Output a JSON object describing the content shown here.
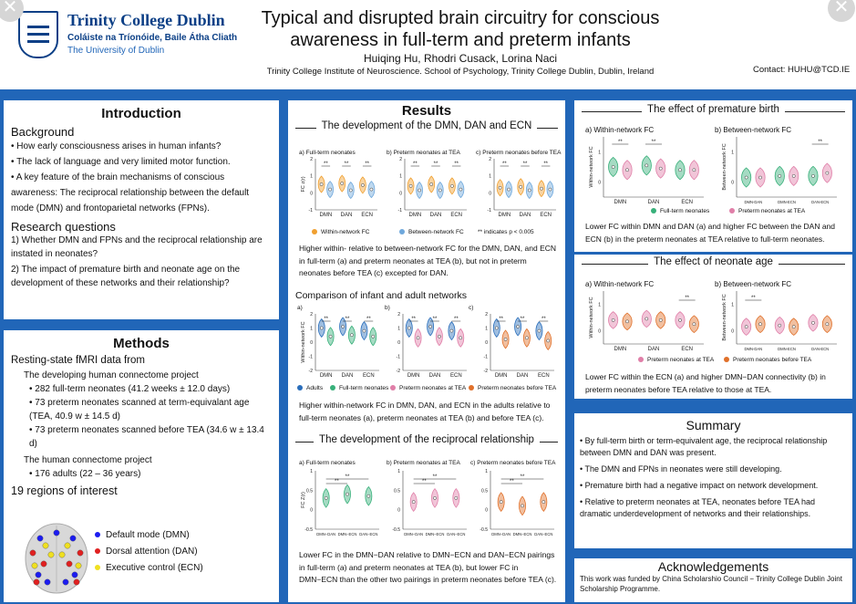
{
  "header": {
    "logo_name": "Trinity College Dublin",
    "logo_irish": "Coláiste na Tríonóide, Baile Átha Cliath",
    "logo_sub": "The University of Dublin",
    "title": "Typical and disrupted brain circuitry for conscious awareness in full-term and preterm infants",
    "authors": "Huiqing Hu, Rhodri Cusack, Lorina Naci",
    "affiliation": "Trinity College Institute of Neuroscience. School of Psychology, Trinity College Dublin, Dublin, Ireland",
    "contact": "Contact: HUHU@TCD.IE"
  },
  "colors": {
    "background": "#2166b8",
    "within": "#f0a030",
    "between": "#6fa8dc",
    "adults": "#2a6ebb",
    "full_term": "#38b07a",
    "preterm_tea": "#e07fa8",
    "preterm_before_tea": "#e0702a",
    "dmn": "#1c1cf0",
    "dan": "#e02020",
    "ecn": "#f0e020"
  },
  "intro": {
    "heading": "Introduction",
    "background_heading": "Background",
    "bullets": [
      "• How early consciousness arises in human infants?",
      "• The lack of language and very limited motor function.",
      "• A key feature of the brain mechanisms of conscious awareness: The reciprocal relationship between the default mode (DMN) and frontoparietal networks (FPNs)."
    ],
    "rq_heading": "Research questions",
    "rq": [
      "1) Whether DMN and FPNs and the reciprocal relationship are instated in neonates?",
      "2) The impact of premature birth and neonate age on the development of these networks and their relationship?"
    ]
  },
  "methods": {
    "heading": "Methods",
    "data_heading": "Resting-state fMRI data from",
    "dhcp": "The developing human connectome project",
    "dhcp_items": [
      "• 282 full-term neonates (41.2 weeks ± 12.0 days)",
      "• 73 preterm neonates scanned at term-equivalant age (TEA, 40.9 w ± 14.5 d)",
      "• 73 preterm neonates scanned before TEA (34.6 w ± 13.4 d)"
    ],
    "hcp": "The human connectome project",
    "hcp_items": [
      "• 176 adults (22 – 36 years)"
    ],
    "roi_heading": "19 regions of interest",
    "roi_legend": [
      "Default mode (DMN)",
      "Dorsal attention (DAN)",
      "Executive control (ECN)"
    ]
  },
  "results": {
    "heading": "Results",
    "sec1": {
      "heading": "The development of the DMN, DAN and ECN",
      "panel_titles": [
        "a) Full-term neonates",
        "b) Preterm neonates at TEA",
        "c) Preterm neonates before TEA"
      ],
      "ylabel": "FC z(r)",
      "categories": [
        "DMN",
        "DAN",
        "ECN"
      ],
      "legend": [
        "Within-network FC",
        "Between-network FC",
        "** indicates p < 0.005"
      ],
      "text": "Higher within- relative to between-network FC for the DMN, DAN, and ECN in full-term (a) and preterm neonates at TEA (b), but not in preterm neonates before TEA (c) excepted for DAN."
    },
    "sec2": {
      "heading": "Comparison of infant and adult networks",
      "panel_labels": [
        "a)",
        "b)",
        "c)"
      ],
      "ylabel": "Within-network FC",
      "categories": [
        "DMN",
        "DAN",
        "ECN"
      ],
      "legend": [
        "Adults",
        "Full-term neonates",
        "Preterm neonates at TEA",
        "Preterm neonates before TEA"
      ],
      "text": "Higher within-network FC in DMN, DAN, and ECN in the adults relative to full-term neonates (a), preterm neonates at TEA (b) and before TEA (c)."
    },
    "sec3": {
      "heading": "The development of the reciprocal relationship",
      "panel_titles": [
        "a) Full-term neonates",
        "b) Preterm neonates at TEA",
        "c) Preterm neonates before TEA"
      ],
      "ylabel": "FC Z(r)",
      "categories": [
        "DMN−DAN",
        "DMN−ECN",
        "DAN−ECN"
      ],
      "text": "Lower FC in the DMN−DAN relative to DMN−ECN and DAN−ECN pairings in full-term (a) and preterm neonates at TEA (b), but lower FC in DMN−ECN than the other two pairings in preterm neonates before TEA (c)."
    }
  },
  "premature": {
    "heading": "The effect of premature birth",
    "panel_titles": [
      "a) Within-network FC",
      "b) Between-network FC"
    ],
    "ylabels": [
      "Within-network FC",
      "Between-network FC"
    ],
    "categories_a": [
      "DMN",
      "DAN",
      "ECN"
    ],
    "categories_b": [
      "DMN-DAN",
      "DMN-ECN",
      "DAN-ECN"
    ],
    "legend": [
      "Full-term neonates",
      "Preterm neonates at TEA"
    ],
    "text": "Lower FC within DMN and DAN (a) and higher FC between the DAN and ECN (b) in the preterm neonates at TEA relative to full-term neonates."
  },
  "age": {
    "heading": "The effect of neonate age",
    "panel_titles": [
      "a) Within-network FC",
      "b) Between-network FC"
    ],
    "ylabels": [
      "Within-network FC",
      "Between-network FC"
    ],
    "categories_a": [
      "DMN",
      "DAN",
      "ECN"
    ],
    "categories_b": [
      "DMN-DAN",
      "DMN-ECN",
      "DAN-ECN"
    ],
    "legend": [
      "Preterm neonates at TEA",
      "Preterm neonates before TEA"
    ],
    "text": "Lower FC within the ECN (a) and higher DMN−DAN connectivity (b) in preterm neonates before TEA relative to those at TEA."
  },
  "summary": {
    "heading": "Summary",
    "items": [
      "• By full-term birth or term-equivalent age, the reciprocal relationship between DMN and DAN was present.",
      "• The DMN and FPNs in neonates were still developing.",
      "• Premature birth had a negative impact on network development.",
      "• Relative to preterm neonates at TEA, neonates before TEA had dramatic underdevelopment of networks and their relationships."
    ]
  },
  "ack": {
    "heading": "Acknowledgements",
    "text": "This work was funded by China Scholarshio Council − Trinity College Dublin Joint Scholarship Programme."
  },
  "chart_data": [
    {
      "type": "violin",
      "title": "a) Full-term neonates",
      "ylabel": "FC z(r)",
      "categories": [
        "DMN",
        "DAN",
        "ECN"
      ],
      "ylim": [
        -1,
        2
      ],
      "series": [
        {
          "name": "Within-network FC",
          "values": [
            0.5,
            0.55,
            0.45
          ]
        },
        {
          "name": "Between-network FC",
          "values": [
            0.2,
            0.15,
            0.2
          ]
        }
      ]
    },
    {
      "type": "violin",
      "title": "b) Preterm neonates at TEA",
      "categories": [
        "DMN",
        "DAN",
        "ECN"
      ],
      "ylim": [
        -1,
        2
      ],
      "series": [
        {
          "name": "Within-network FC",
          "values": [
            0.4,
            0.5,
            0.4
          ]
        },
        {
          "name": "Between-network FC",
          "values": [
            0.15,
            0.15,
            0.2
          ]
        }
      ]
    },
    {
      "type": "violin",
      "title": "c) Preterm neonates before TEA",
      "categories": [
        "DMN",
        "DAN",
        "ECN"
      ],
      "ylim": [
        -1,
        2
      ],
      "series": [
        {
          "name": "Within-network FC",
          "values": [
            0.3,
            0.35,
            0.25
          ]
        },
        {
          "name": "Between-network FC",
          "values": [
            0.2,
            0.15,
            0.2
          ]
        }
      ]
    },
    {
      "type": "violin",
      "title": "a)",
      "ylabel": "Within-network FC",
      "categories": [
        "DMN",
        "DAN",
        "ECN"
      ],
      "ylim": [
        -2,
        2
      ],
      "series": [
        {
          "name": "Adults",
          "values": [
            1.0,
            1.1,
            0.8
          ]
        },
        {
          "name": "Full-term neonates",
          "values": [
            0.4,
            0.5,
            0.4
          ]
        }
      ]
    },
    {
      "type": "violin",
      "title": "b)",
      "categories": [
        "DMN",
        "DAN",
        "ECN"
      ],
      "ylim": [
        -2,
        2
      ],
      "series": [
        {
          "name": "Adults",
          "values": [
            1.0,
            1.1,
            0.8
          ]
        },
        {
          "name": "Preterm neonates at TEA",
          "values": [
            0.3,
            0.4,
            0.3
          ]
        }
      ]
    },
    {
      "type": "violin",
      "title": "c)",
      "categories": [
        "DMN",
        "DAN",
        "ECN"
      ],
      "ylim": [
        -2,
        2
      ],
      "series": [
        {
          "name": "Adults",
          "values": [
            1.0,
            1.1,
            0.8
          ]
        },
        {
          "name": "Preterm neonates before TEA",
          "values": [
            0.2,
            0.3,
            0.1
          ]
        }
      ]
    },
    {
      "type": "violin",
      "title": "a) Full-term neonates",
      "ylabel": "FC Z(r)",
      "categories": [
        "DMN−DAN",
        "DMN−ECN",
        "DAN−ECN"
      ],
      "ylim": [
        -0.5,
        1
      ],
      "series": [
        {
          "name": "Full-term neonates",
          "values": [
            0.3,
            0.4,
            0.35
          ]
        }
      ]
    },
    {
      "type": "violin",
      "title": "b) Preterm neonates at TEA",
      "categories": [
        "DMN−DAN",
        "DMN−ECN",
        "DAN−ECN"
      ],
      "ylim": [
        -0.5,
        1
      ],
      "series": [
        {
          "name": "Preterm neonates at TEA",
          "values": [
            0.2,
            0.3,
            0.3
          ]
        }
      ]
    },
    {
      "type": "violin",
      "title": "c) Preterm neonates before TEA",
      "categories": [
        "DMN−DAN",
        "DMN−ECN",
        "DAN−ECN"
      ],
      "ylim": [
        -0.5,
        1
      ],
      "series": [
        {
          "name": "Preterm neonates before TEA",
          "values": [
            0.2,
            0.1,
            0.2
          ]
        }
      ]
    },
    {
      "type": "violin",
      "title": "a) Within-network FC",
      "categories": [
        "DMN",
        "DAN",
        "ECN"
      ],
      "series": [
        {
          "name": "Full-term neonates",
          "values": [
            0.5,
            0.55,
            0.4
          ]
        },
        {
          "name": "Preterm neonates at TEA",
          "values": [
            0.4,
            0.45,
            0.4
          ]
        }
      ]
    },
    {
      "type": "violin",
      "title": "b) Between-network FC",
      "categories": [
        "DMN-DAN",
        "DMN-ECN",
        "DAN-ECN"
      ],
      "series": [
        {
          "name": "Full-term neonates",
          "values": [
            0.15,
            0.2,
            0.2
          ]
        },
        {
          "name": "Preterm neonates at TEA",
          "values": [
            0.15,
            0.2,
            0.3
          ]
        }
      ]
    },
    {
      "type": "violin",
      "title": "a) Within-network FC",
      "categories": [
        "DMN",
        "DAN",
        "ECN"
      ],
      "series": [
        {
          "name": "Preterm neonates at TEA",
          "values": [
            0.4,
            0.45,
            0.4
          ]
        },
        {
          "name": "Preterm neonates before TEA",
          "values": [
            0.35,
            0.4,
            0.25
          ]
        }
      ]
    },
    {
      "type": "violin",
      "title": "b) Between-network FC",
      "categories": [
        "DMN-DAN",
        "DMN-ECN",
        "DAN-ECN"
      ],
      "series": [
        {
          "name": "Preterm neonates at TEA",
          "values": [
            0.15,
            0.2,
            0.3
          ]
        },
        {
          "name": "Preterm neonates before TEA",
          "values": [
            0.25,
            0.15,
            0.25
          ]
        }
      ]
    }
  ]
}
